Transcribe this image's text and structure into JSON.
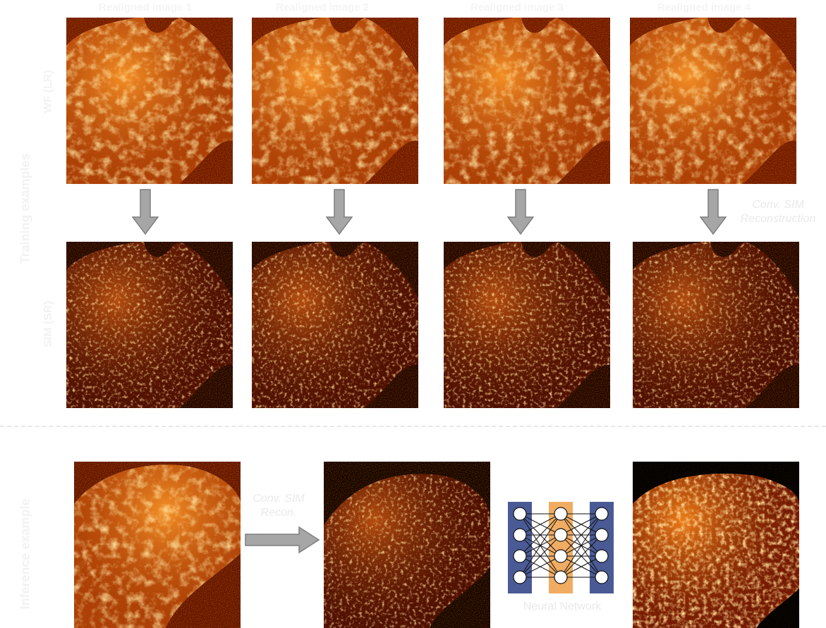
{
  "columns": {
    "titles": [
      "Realigned image 1",
      "Realigned image 2",
      "Realigned image 3",
      "Realigned image 4"
    ]
  },
  "row_labels": {
    "group": "Training examples",
    "wf": "WF (LR)",
    "sim": "SIM (SR)",
    "inference": "Inference example"
  },
  "annotations": {
    "conv_sim_reconstruction": "Conv. SIM Reconstruction",
    "conv_sim_reconstruction_lines": [
      "Conv. SIM",
      "Reconstruction"
    ],
    "conv_sim_recon_lines": [
      "Conv. SIM",
      "Recon."
    ],
    "neural_network": "Neural Network"
  },
  "colors": {
    "arrow_fill": "#a6a6a6",
    "arrow_stroke": "#7f7f7f",
    "nn_outer_layer": "#4a5a95",
    "nn_hidden_layer": "#f0ac62",
    "label_text": "#f2f2f2",
    "image_colormap": "afmhot"
  },
  "icons": {
    "arrow_down": "down-arrow-icon",
    "arrow_right": "right-arrow-icon",
    "network": "neural-network-icon"
  }
}
